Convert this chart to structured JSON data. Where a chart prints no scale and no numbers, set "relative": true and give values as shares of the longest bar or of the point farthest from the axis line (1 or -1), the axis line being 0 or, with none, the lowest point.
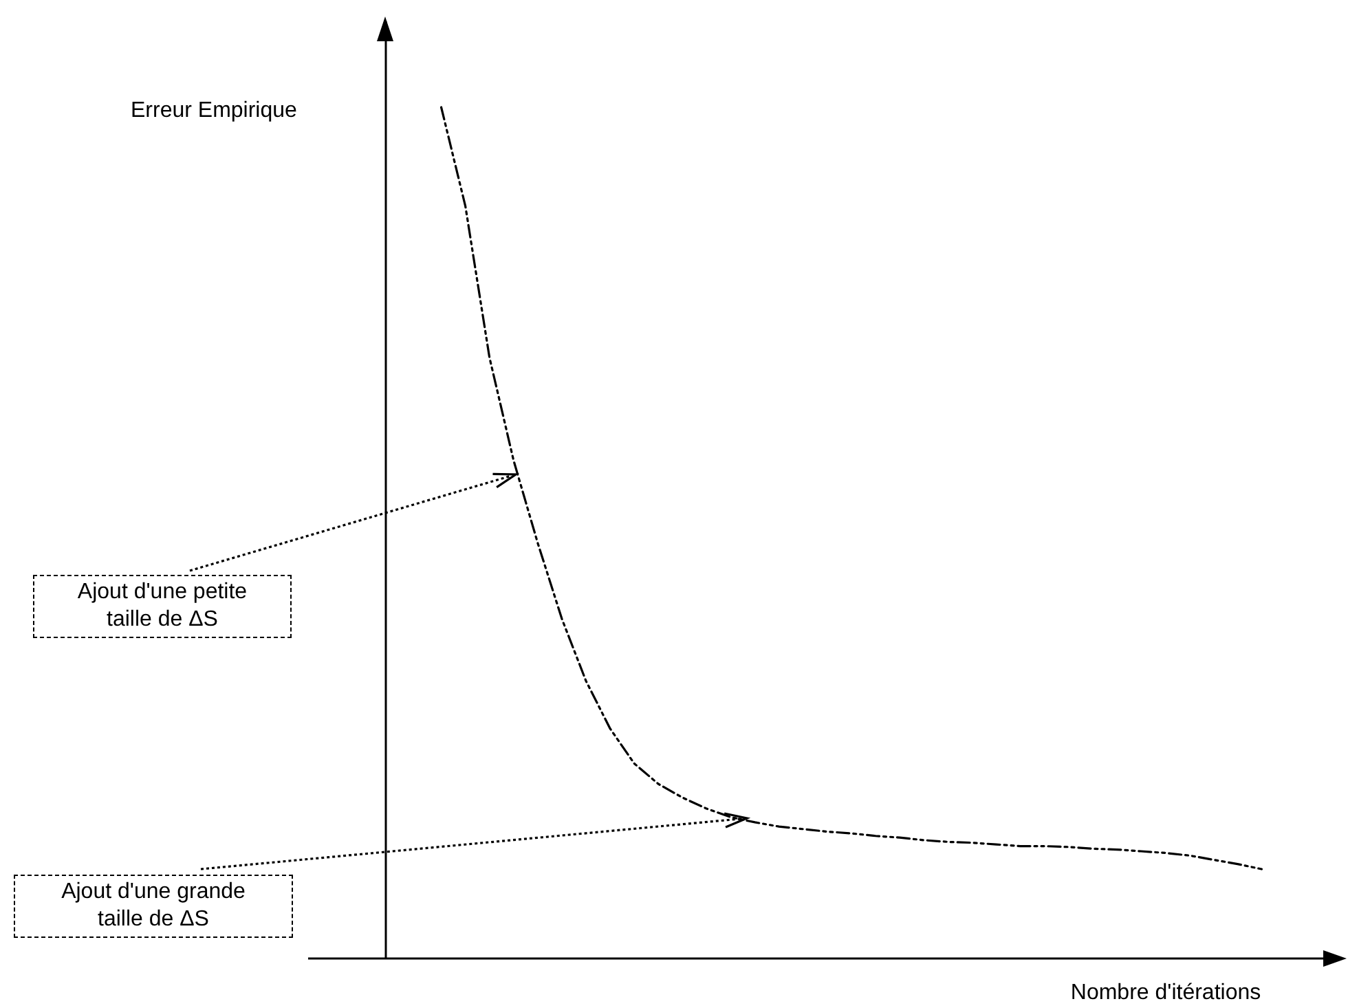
{
  "chart_data": {
    "type": "line",
    "xlabel": "Nombre d'itérations",
    "relative": true,
    "line_style": "dashed",
    "grid": false,
    "categories": [
      null,
      null,
      null,
      null,
      null,
      null,
      null,
      null,
      null,
      null,
      null,
      null,
      null,
      null,
      null,
      null,
      null,
      null,
      null,
      null,
      null,
      null,
      null,
      null,
      null,
      null,
      null,
      null,
      null,
      null,
      null,
      null,
      null,
      null,
      null
    ],
    "series": [
      {
        "color": "#000000",
        "values": [
          1,
          0.884,
          0.706,
          0.585,
          0.488,
          0.399,
          0.326,
          0.27,
          0.229,
          0.205,
          0.189,
          0.176,
          0.166,
          0.16,
          0.155,
          0.152,
          0.149,
          0.147,
          0.144,
          0.142,
          0.139,
          0.137,
          0.136,
          0.134,
          0.132,
          0.132,
          0.131,
          0.129,
          0.128,
          0.126,
          0.124,
          0.121,
          0.116,
          0.111,
          0.105
        ]
      }
    ],
    "annotations": [
      "Erreur Empirique",
      "Ajout d'une petite taille de ΔS",
      "Ajout d'une grande taille de ΔS"
    ]
  }
}
